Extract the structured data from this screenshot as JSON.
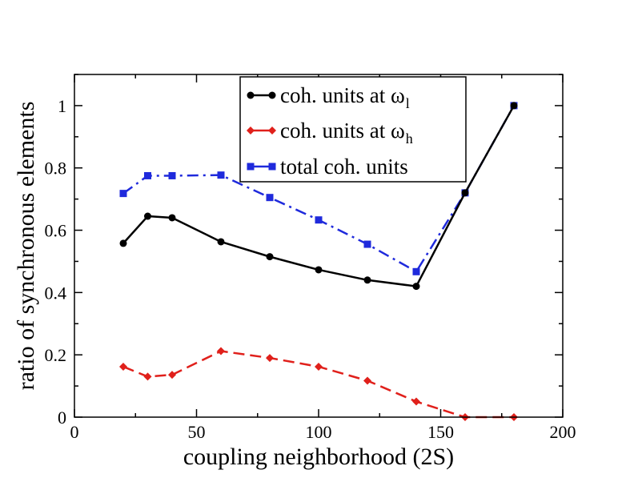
{
  "chart_data": {
    "type": "line",
    "title": "",
    "xlabel": "coupling neighborhood (2S)",
    "ylabel": "ratio of synchronous elements",
    "xlim": [
      0,
      200
    ],
    "ylim": [
      0,
      1.1
    ],
    "xticks": [
      0,
      50,
      100,
      150,
      200
    ],
    "yticks": [
      0,
      0.2,
      0.4,
      0.6,
      0.8,
      1
    ],
    "ytick_labels": [
      "0",
      "0.2",
      "0.4",
      "0.6",
      "0.8",
      "1"
    ],
    "grid": false,
    "legend_position": "top-center",
    "series": [
      {
        "name": "coh. units at ω_l",
        "legend_main": "coh. units at ω",
        "legend_sub": "l",
        "color": "#000000",
        "line_style": "solid",
        "marker": "circle",
        "x": [
          20,
          30,
          40,
          60,
          80,
          100,
          120,
          140,
          160,
          180
        ],
        "y": [
          0.558,
          0.645,
          0.64,
          0.563,
          0.515,
          0.473,
          0.44,
          0.42,
          0.72,
          1.0
        ]
      },
      {
        "name": "coh. units at ω_h",
        "legend_main": "coh. units at ω",
        "legend_sub": "h",
        "color": "#e0201b",
        "line_style": "dashed",
        "marker": "diamond",
        "x": [
          20,
          30,
          40,
          60,
          80,
          100,
          120,
          140,
          160,
          180
        ],
        "y": [
          0.162,
          0.13,
          0.136,
          0.212,
          0.19,
          0.162,
          0.117,
          0.05,
          0.0,
          0.0
        ]
      },
      {
        "name": "total coh. units",
        "legend_main": "total coh. units",
        "legend_sub": "",
        "color": "#1f2adc",
        "line_style": "dashdot",
        "marker": "square",
        "x": [
          20,
          30,
          40,
          60,
          80,
          100,
          120,
          140,
          160,
          180
        ],
        "y": [
          0.718,
          0.775,
          0.775,
          0.777,
          0.705,
          0.633,
          0.555,
          0.467,
          0.72,
          1.0
        ]
      }
    ]
  }
}
